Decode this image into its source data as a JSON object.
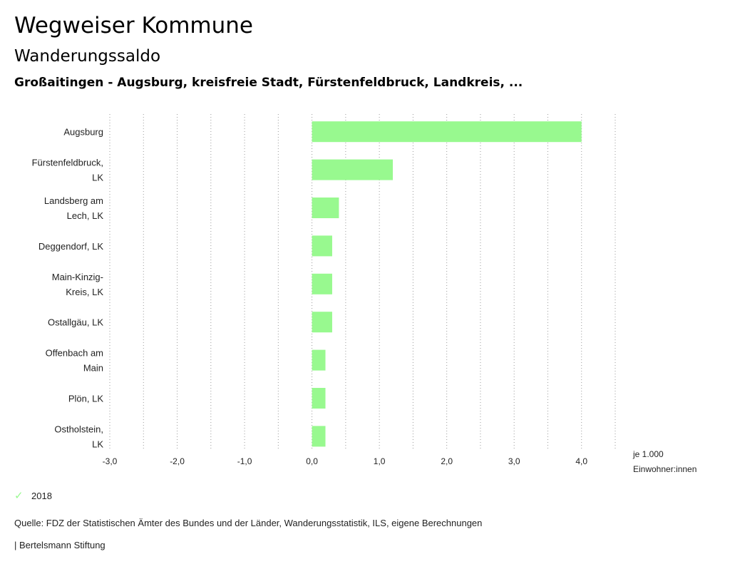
{
  "header": {
    "title": "Wegweiser Kommune",
    "subtitle": "Wanderungssaldo",
    "context": "Großaitingen - Augsburg, kreisfreie Stadt, Fürstenfeldbruck, Landkreis, ..."
  },
  "chart_data": {
    "type": "bar",
    "orientation": "horizontal",
    "categories": [
      [
        "Augsburg"
      ],
      [
        "Fürstenfeldbruck,",
        "LK"
      ],
      [
        "Landsberg am",
        "Lech, LK"
      ],
      [
        "Deggendorf, LK"
      ],
      [
        "Main-Kinzig-",
        "Kreis, LK"
      ],
      [
        "Ostallgäu, LK"
      ],
      [
        "Offenbach am",
        "Main"
      ],
      [
        "Plön, LK"
      ],
      [
        "Ostholstein,",
        "LK"
      ]
    ],
    "series": [
      {
        "name": "2018",
        "values": [
          4.0,
          1.2,
          0.4,
          0.3,
          0.3,
          0.3,
          0.2,
          0.2,
          0.2
        ]
      }
    ],
    "xlim": [
      -3.0,
      4.5
    ],
    "ticks": [
      -3.0,
      -2.0,
      -1.0,
      0.0,
      1.0,
      2.0,
      3.0,
      4.0
    ],
    "tick_labels": [
      "-3,0",
      "-2,0",
      "-1,0",
      "0,0",
      "1,0",
      "2,0",
      "3,0",
      "4,0"
    ],
    "xlabel": [
      "je 1.000",
      "Einwohner:innen"
    ],
    "grid": true,
    "legend_position": "bottom-left",
    "bar_color": "#98f98f"
  },
  "legend": {
    "label": "2018",
    "icon": "check-icon"
  },
  "footer": {
    "source": "Quelle: FDZ der Statistischen Ämter des Bundes und der Länder, Wanderungsstatistik, ILS, eigene Berechnungen",
    "brand": "| Bertelsmann Stiftung"
  }
}
